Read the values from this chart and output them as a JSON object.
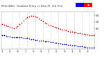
{
  "title": "Milw Wthr  Outdoor Temp vs Dew Pt  (24 Hrs)",
  "temp_x": [
    0,
    1,
    2,
    3,
    4,
    5,
    6,
    7,
    8,
    9,
    10,
    11,
    12,
    13,
    14,
    15,
    16,
    17,
    18,
    19,
    20,
    21,
    22,
    23,
    24,
    25,
    26,
    27,
    28,
    29,
    30,
    31,
    32,
    33,
    34,
    35,
    36,
    37,
    38,
    39,
    40,
    41,
    42,
    43,
    44,
    45,
    46,
    47
  ],
  "temp_y": [
    46,
    45,
    44,
    43,
    42,
    41,
    40,
    41,
    43,
    46,
    49,
    52,
    55,
    57,
    58,
    59,
    59,
    58,
    57,
    55,
    53,
    51,
    49,
    47,
    45,
    44,
    43,
    42,
    41,
    40,
    39,
    38,
    38,
    37,
    36,
    35,
    35,
    34,
    34,
    33,
    33,
    32,
    32,
    31,
    31,
    30,
    30,
    29
  ],
  "dew_x": [
    0,
    1,
    2,
    3,
    4,
    5,
    6,
    7,
    8,
    9,
    10,
    11,
    12,
    13,
    14,
    15,
    16,
    17,
    18,
    19,
    20,
    21,
    22,
    23,
    24,
    25,
    26,
    27,
    28,
    29,
    30,
    31,
    32,
    33,
    34,
    35,
    36,
    37,
    38,
    39,
    40,
    41,
    42,
    43,
    44,
    45,
    46,
    47
  ],
  "dew_y": [
    30,
    29,
    28,
    27,
    27,
    26,
    26,
    26,
    26,
    26,
    26,
    25,
    25,
    25,
    24,
    23,
    23,
    22,
    22,
    21,
    21,
    21,
    20,
    20,
    20,
    19,
    19,
    18,
    18,
    17,
    17,
    16,
    16,
    16,
    15,
    15,
    14,
    14,
    14,
    13,
    13,
    13,
    12,
    12,
    11,
    11,
    11,
    10
  ],
  "temp_color": "#cc0000",
  "dew_color": "#0000cc",
  "bg_color": "#ffffff",
  "legend_bar_blue": "#0000ff",
  "legend_bar_red": "#ff0000",
  "ylim_min": 8,
  "ylim_max": 65,
  "xlim_min": -0.5,
  "xlim_max": 47.5,
  "grid_x": [
    5,
    9,
    13,
    17,
    21,
    25,
    29,
    33,
    37,
    41,
    45
  ],
  "xtick_positions": [
    0,
    4,
    8,
    12,
    16,
    20,
    24,
    28,
    32,
    36,
    40,
    44
  ],
  "xtick_labels": [
    "1",
    "5",
    "9",
    "1",
    "5",
    "9",
    "1",
    "5",
    "9",
    "1",
    "5",
    "9"
  ],
  "ytick_positions": [
    10,
    20,
    30,
    40,
    50,
    60
  ],
  "ytick_labels": [
    "",
    "",
    "",
    "40",
    "50",
    "60"
  ],
  "dot_size": 1.5
}
